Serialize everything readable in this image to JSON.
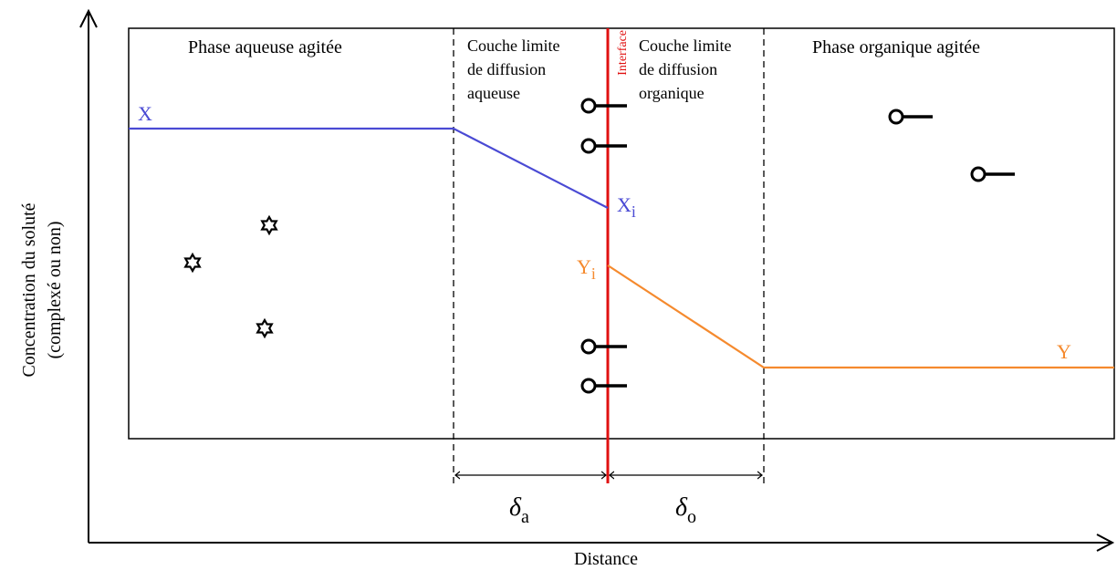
{
  "axes": {
    "y_label_line1": "Concentration du soluté",
    "y_label_line2": "(complexé ou non)",
    "x_label": "Distance"
  },
  "regions": {
    "aqueous_phase": "Phase aqueuse agitée",
    "aqueous_layer": [
      "Couche limite",
      "de diffusion",
      "aqueuse"
    ],
    "interface": "Interface",
    "organic_layer": [
      "Couche limite",
      "de diffusion",
      "organique"
    ],
    "organic_phase": "Phase organique agitée"
  },
  "profiles": {
    "aqueous_bulk": "X",
    "aqueous_interface_main": "X",
    "aqueous_interface_sub": "i",
    "organic_interface_main": "Y",
    "organic_interface_sub": "i",
    "organic_bulk": "Y"
  },
  "thickness": {
    "aqueous_symbol": "δ",
    "aqueous_sub": "a",
    "organic_symbol": "δ",
    "organic_sub": "o"
  },
  "colors": {
    "aqueous": "#4a4ad4",
    "organic": "#f58a2e",
    "interface": "#e01010"
  }
}
